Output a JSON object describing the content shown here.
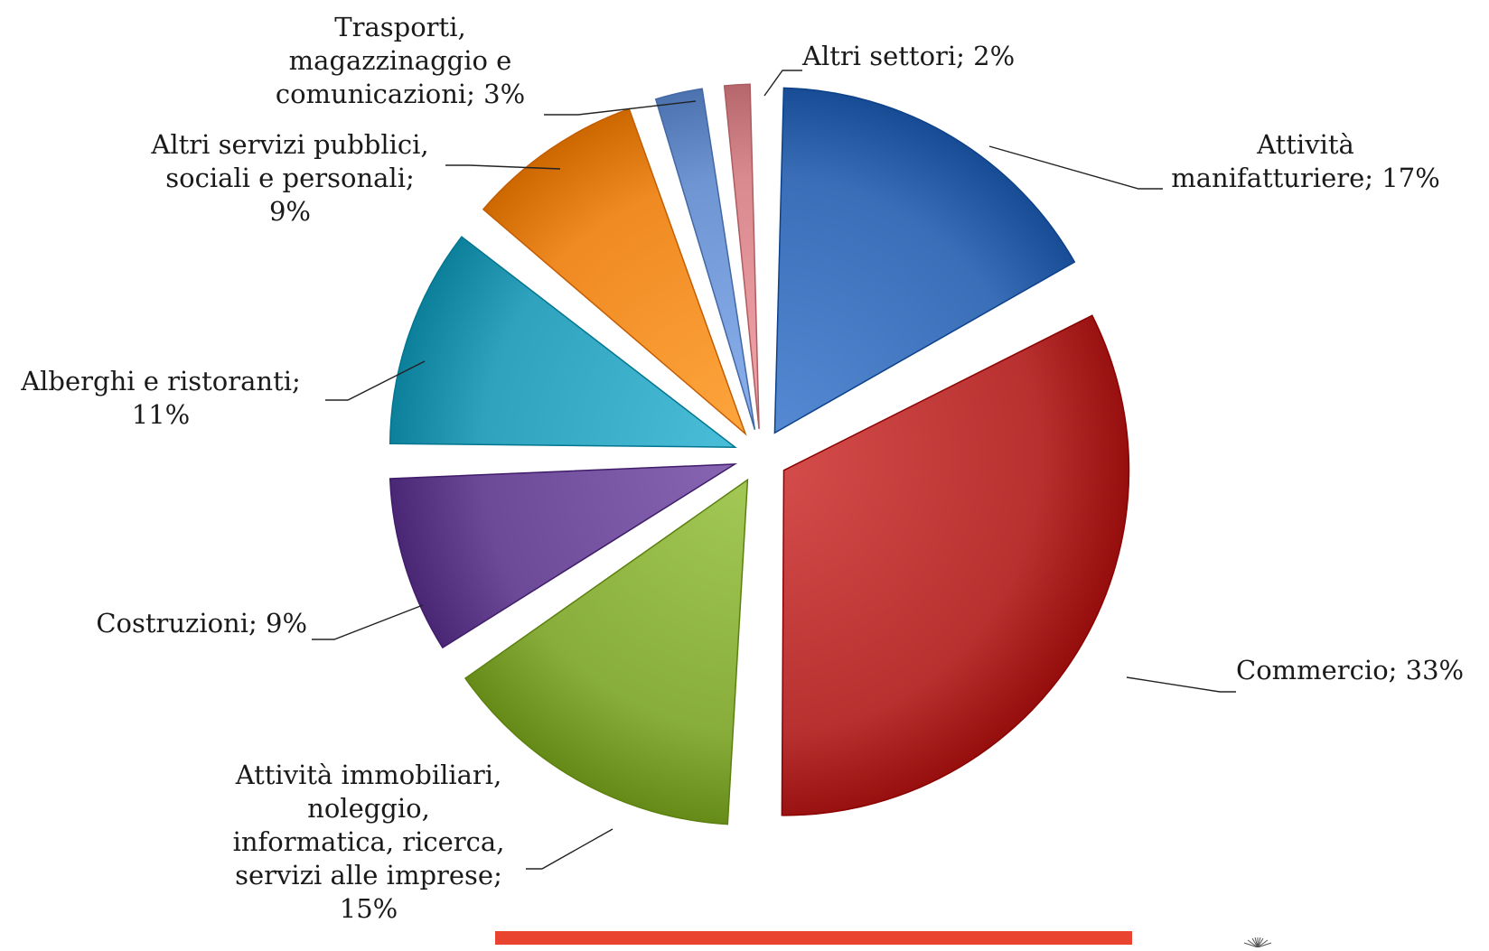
{
  "chart_data": {
    "type": "pie",
    "title": "",
    "label_format": "{name}; {value}%",
    "slices": [
      {
        "name": "Attività manifatturiere",
        "value": 17,
        "color": "#3a6fb8",
        "label_lines": [
          "Attività",
          "manifatturiere; 17%"
        ]
      },
      {
        "name": "Commercio",
        "value": 33,
        "color": "#b8302f",
        "label_lines": [
          "Commercio; 33%"
        ]
      },
      {
        "name": "Attività immobiliari, noleggio, informatica, ricerca, servizi alle imprese",
        "value": 15,
        "color": "#88ad3b",
        "label_lines": [
          "Attività immobiliari,",
          "noleggio,",
          "informatica, ricerca,",
          "servizi alle imprese;",
          "15%"
        ]
      },
      {
        "name": "Costruzioni",
        "value": 9,
        "color": "#6d4a98",
        "label_lines": [
          "Costruzioni; 9%"
        ]
      },
      {
        "name": "Alberghi e ristoranti",
        "value": 11,
        "color": "#2fa3bd",
        "label_lines": [
          "Alberghi e ristoranti;",
          "11%"
        ]
      },
      {
        "name": "Altri servizi pubblici, sociali e personali",
        "value": 9,
        "color": "#f08a22",
        "label_lines": [
          "Altri servizi pubblici,",
          "sociali e personali;",
          "9%"
        ]
      },
      {
        "name": "Trasporti, magazzinaggio e comunicazioni",
        "value": 3,
        "color": "#6f95d2",
        "label_lines": [
          "Trasporti,",
          "magazzinaggio e",
          "comunicazioni; 3%"
        ]
      },
      {
        "name": "Altri settori",
        "value": 2,
        "color": "#d98a8e",
        "label_lines": [
          "Altri settori; 2%"
        ]
      }
    ]
  },
  "decor": {
    "bottom_bar_color": "#e8442f",
    "logo_icon": "sunburst-icon"
  }
}
